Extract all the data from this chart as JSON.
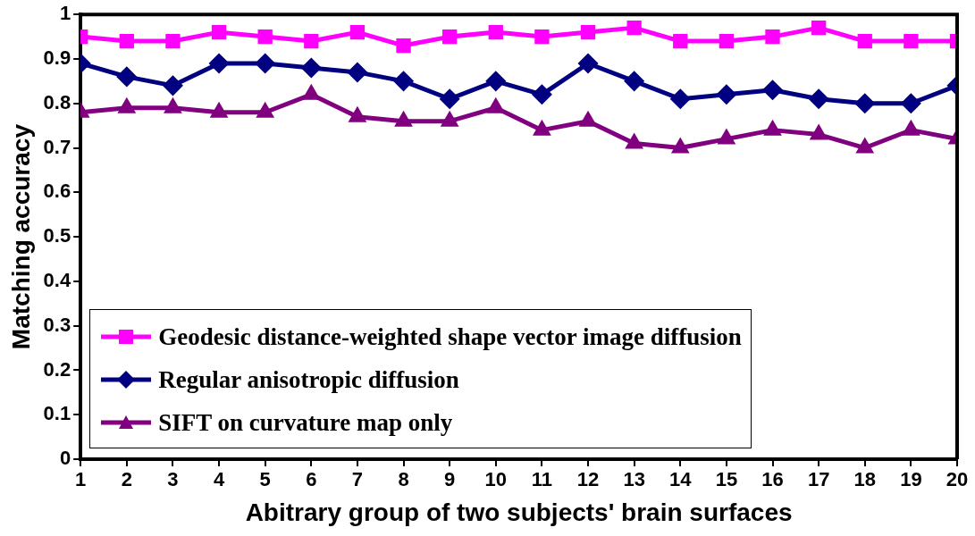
{
  "chart_data": {
    "type": "line",
    "xlabel": "Abitrary group of two subjects' brain surfaces",
    "ylabel": "Matching accuracy",
    "x": [
      1,
      2,
      3,
      4,
      5,
      6,
      7,
      8,
      9,
      10,
      11,
      12,
      13,
      14,
      15,
      16,
      17,
      18,
      19,
      20
    ],
    "xlim": [
      1,
      20
    ],
    "xticks": [
      1,
      2,
      3,
      4,
      5,
      6,
      7,
      8,
      9,
      10,
      11,
      12,
      13,
      14,
      15,
      16,
      17,
      18,
      19,
      20
    ],
    "ylim": [
      0,
      1
    ],
    "yticks": [
      0,
      {
        "value": 0.1,
        "label": "0.1"
      },
      {
        "value": 0.2,
        "label": "0.2"
      },
      {
        "value": 0.3,
        "label": "0.3"
      },
      {
        "value": 0.4,
        "label": "0.4"
      },
      {
        "value": 0.5,
        "label": "0.5"
      },
      {
        "value": 0.6,
        "label": "0.6"
      },
      {
        "value": 0.7,
        "label": "0.7"
      },
      {
        "value": 0.8,
        "label": "0.8"
      },
      {
        "value": 0.9,
        "label": "0.9"
      },
      1
    ],
    "grid": false,
    "legend": "bottom left",
    "series": [
      {
        "name": "Geodesic distance-weighted shape vector image diffusion",
        "color": "#ff00ff",
        "marker": "square",
        "values": [
          0.95,
          0.94,
          0.94,
          0.96,
          0.95,
          0.94,
          0.96,
          0.93,
          0.95,
          0.96,
          0.95,
          0.96,
          0.97,
          0.94,
          0.94,
          0.95,
          0.97,
          0.94,
          0.94,
          0.94
        ]
      },
      {
        "name": "Regular anisotropic diffusion",
        "color": "#000080",
        "marker": "diamond",
        "values": [
          0.89,
          0.86,
          0.84,
          0.89,
          0.89,
          0.88,
          0.87,
          0.85,
          0.81,
          0.85,
          0.82,
          0.89,
          0.85,
          0.81,
          0.82,
          0.83,
          0.81,
          0.8,
          0.8,
          0.84
        ]
      },
      {
        "name": "SIFT on curvature map only",
        "color": "#800080",
        "marker": "triangle",
        "values": [
          0.78,
          0.79,
          0.79,
          0.78,
          0.78,
          0.82,
          0.77,
          0.76,
          0.76,
          0.79,
          0.74,
          0.76,
          0.71,
          0.7,
          0.72,
          0.74,
          0.73,
          0.7,
          0.74,
          0.72
        ]
      }
    ]
  }
}
